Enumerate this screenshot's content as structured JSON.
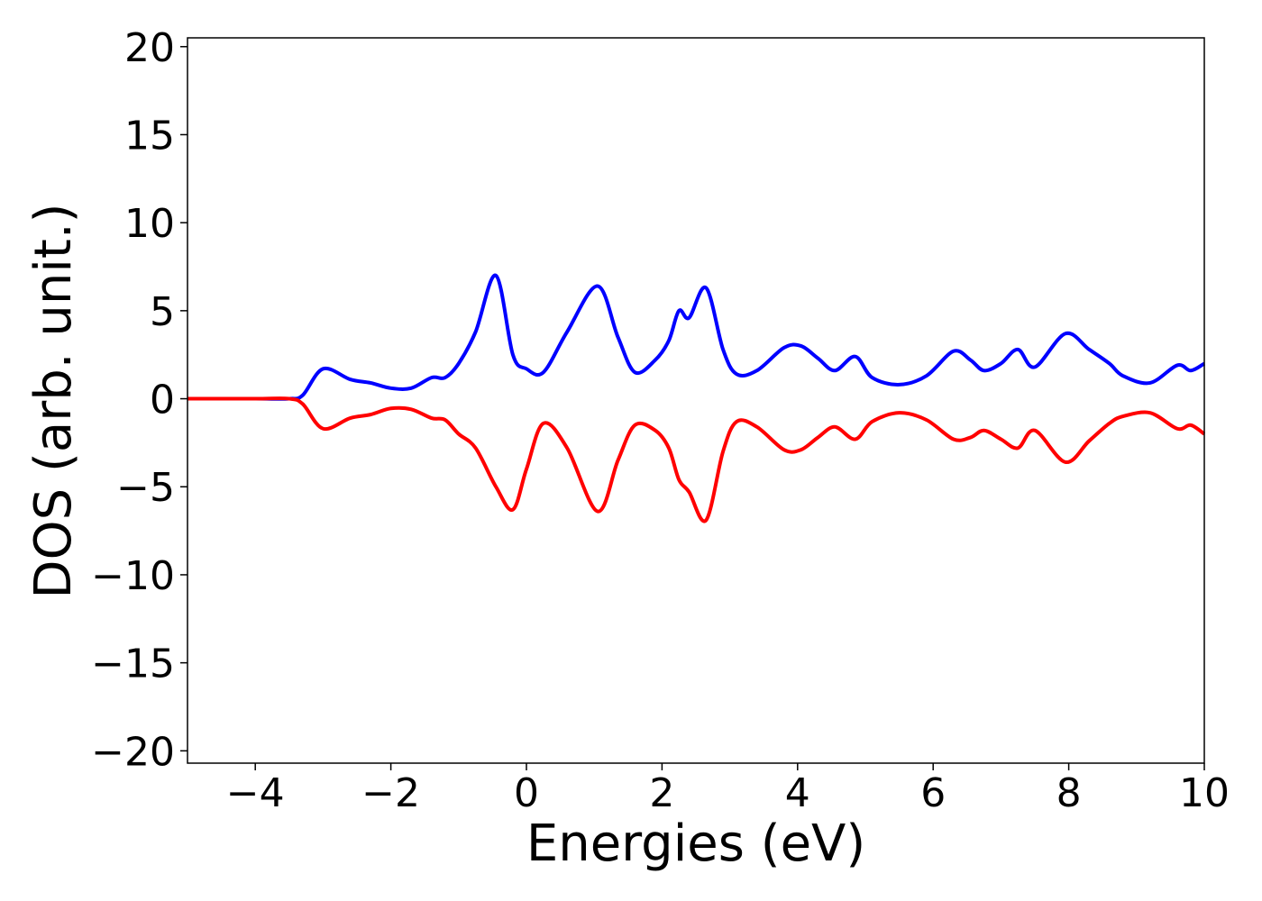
{
  "chart_data": {
    "type": "line",
    "xlabel": "Energies (eV)",
    "ylabel": "DOS (arb. unit.)",
    "x": [
      -5,
      -4,
      -3.5,
      -3.3,
      -3.0,
      -2.6,
      -2.3,
      -2.0,
      -1.7,
      -1.4,
      -1.2,
      -1.0,
      -0.75,
      -0.45,
      -0.2,
      0,
      0.25,
      0.6,
      1.05,
      1.35,
      1.6,
      1.9,
      2.1,
      2.25,
      2.4,
      2.65,
      2.9,
      3.1,
      3.4,
      3.8,
      4.05,
      4.3,
      4.55,
      4.85,
      5.1,
      5.5,
      5.9,
      6.3,
      6.55,
      6.75,
      7.0,
      7.25,
      7.5,
      7.95,
      8.3,
      8.6,
      8.8,
      9.2,
      9.6,
      9.8,
      10
    ],
    "series": [
      {
        "color": "#0000ff",
        "values": [
          0,
          0,
          0,
          0.2,
          1.7,
          1.1,
          0.9,
          0.6,
          0.6,
          1.2,
          1.2,
          2.0,
          3.8,
          7.0,
          2.5,
          1.7,
          1.5,
          3.8,
          6.4,
          3.5,
          1.5,
          2.2,
          3.3,
          5.0,
          4.6,
          6.3,
          2.8,
          1.4,
          1.6,
          2.9,
          3.0,
          2.3,
          1.6,
          2.4,
          1.2,
          0.8,
          1.3,
          2.7,
          2.2,
          1.6,
          2.0,
          2.8,
          1.8,
          3.7,
          2.8,
          2.0,
          1.3,
          0.9,
          1.9,
          1.6,
          2.0
        ]
      },
      {
        "color": "#ff0000",
        "values": [
          0,
          0,
          0,
          -0.3,
          -1.7,
          -1.1,
          -0.9,
          -0.55,
          -0.6,
          -1.1,
          -1.2,
          -2.0,
          -2.8,
          -5.0,
          -6.3,
          -4.0,
          -1.4,
          -2.8,
          -6.4,
          -3.5,
          -1.5,
          -1.8,
          -2.8,
          -4.6,
          -5.3,
          -6.9,
          -3.0,
          -1.3,
          -1.6,
          -2.9,
          -2.9,
          -2.2,
          -1.6,
          -2.3,
          -1.3,
          -0.8,
          -1.2,
          -2.3,
          -2.2,
          -1.8,
          -2.3,
          -2.8,
          -1.8,
          -3.6,
          -2.4,
          -1.4,
          -1.0,
          -0.8,
          -1.7,
          -1.5,
          -2.0
        ]
      }
    ],
    "xlim": [
      -5,
      10
    ],
    "ylim": [
      -20.7,
      20.5
    ],
    "xticks": [
      {
        "value": -4,
        "label": "−4"
      },
      {
        "value": -2,
        "label": "−2"
      },
      0,
      2,
      4,
      6,
      8,
      10
    ],
    "yticks": [
      {
        "value": -20,
        "label": "−20"
      },
      {
        "value": -15,
        "label": "−15"
      },
      {
        "value": -10,
        "label": "−10"
      },
      {
        "value": -5,
        "label": "−5"
      },
      0,
      5,
      10,
      15,
      20
    ],
    "grid": false
  }
}
